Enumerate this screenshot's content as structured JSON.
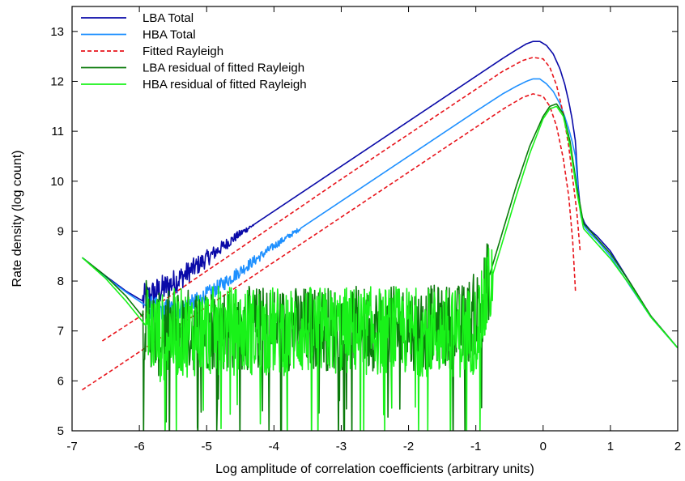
{
  "chart_data": {
    "type": "line",
    "title": "",
    "xlabel": "Log amplitude of correlation coefficients (arbitrary units)",
    "ylabel": "Rate density (log count)",
    "xlim": [
      -7,
      2
    ],
    "ylim": [
      5,
      13.5
    ],
    "xticks": [
      -7,
      -6,
      -5,
      -4,
      -3,
      -2,
      -1,
      0,
      1,
      2
    ],
    "yticks": [
      5,
      6,
      7,
      8,
      9,
      10,
      11,
      12,
      13
    ],
    "grid": false,
    "legend_position": "top-left",
    "series": [
      {
        "name": "LBA Total",
        "color": "#0a0aa8",
        "dash": "solid",
        "x": [
          -6.85,
          -6.5,
          -6.2,
          -5.95,
          -5.9,
          -5.8,
          -5.6,
          -5.4,
          -5.2,
          -5.0,
          -4.8,
          -4.5,
          -4.0,
          -3.5,
          -3.0,
          -2.5,
          -2.0,
          -1.5,
          -1.0,
          -0.6,
          -0.4,
          -0.25,
          -0.15,
          -0.05,
          0.05,
          0.15,
          0.25,
          0.32,
          0.38,
          0.43,
          0.48,
          0.52,
          0.56,
          0.62,
          0.7,
          0.8,
          1.0,
          1.3,
          1.6,
          2.0
        ],
        "y": [
          8.47,
          8.1,
          7.8,
          7.6,
          7.62,
          7.72,
          7.88,
          8.05,
          8.25,
          8.45,
          8.65,
          8.95,
          9.4,
          9.85,
          10.3,
          10.75,
          11.2,
          11.65,
          12.1,
          12.46,
          12.63,
          12.75,
          12.8,
          12.8,
          12.72,
          12.55,
          12.25,
          11.95,
          11.6,
          11.25,
          10.8,
          9.9,
          9.35,
          9.15,
          9.02,
          8.9,
          8.6,
          7.95,
          7.3,
          6.66
        ],
        "noise_x_range": [
          -5.95,
          -4.3
        ],
        "noise_amp": [
          0.35,
          0.04
        ]
      },
      {
        "name": "HBA Total",
        "color": "#1e90ff",
        "dash": "solid",
        "x": [
          -6.85,
          -6.5,
          -6.2,
          -5.95,
          -5.9,
          -5.8,
          -5.6,
          -5.4,
          -5.2,
          -5.0,
          -4.8,
          -4.5,
          -4.0,
          -3.5,
          -3.0,
          -2.5,
          -2.0,
          -1.5,
          -1.0,
          -0.6,
          -0.4,
          -0.25,
          -0.15,
          -0.05,
          0.05,
          0.15,
          0.25,
          0.32,
          0.38,
          0.43,
          0.48,
          0.52,
          0.56,
          0.62,
          0.7,
          0.8,
          1.0,
          1.3,
          1.6,
          2.0
        ],
        "y": [
          8.47,
          8.08,
          7.78,
          7.55,
          7.5,
          7.45,
          7.42,
          7.44,
          7.55,
          7.72,
          7.9,
          8.2,
          8.7,
          9.15,
          9.6,
          10.05,
          10.5,
          10.95,
          11.4,
          11.75,
          11.9,
          12.0,
          12.05,
          12.05,
          11.95,
          11.8,
          11.55,
          11.3,
          11.05,
          10.8,
          10.5,
          9.8,
          9.3,
          9.08,
          8.95,
          8.82,
          8.5,
          7.88,
          7.28,
          6.66
        ],
        "noise_x_range": [
          -5.9,
          -3.6
        ],
        "noise_amp": [
          0.25,
          0.04
        ]
      },
      {
        "name": "Fitted Rayleigh",
        "color": "#e8141b",
        "dash": "dashed",
        "x": [
          -6.55,
          -6.0,
          -5.5,
          -5.0,
          -4.5,
          -4.0,
          -3.5,
          -3.0,
          -2.5,
          -2.0,
          -1.5,
          -1.0,
          -0.6,
          -0.3,
          -0.15,
          0.0,
          0.1,
          0.2,
          0.3,
          0.38,
          0.44,
          0.5,
          0.55
        ],
        "y": [
          6.8,
          7.28,
          7.74,
          8.2,
          8.66,
          9.12,
          9.58,
          10.04,
          10.49,
          10.94,
          11.39,
          11.84,
          12.2,
          12.42,
          12.48,
          12.45,
          12.28,
          11.92,
          11.35,
          10.7,
          10.05,
          9.4,
          8.6
        ]
      },
      {
        "name": "",
        "color": "#e8141b",
        "dash": "dashed",
        "x": [
          -6.85,
          -6.5,
          -6.0,
          -5.5,
          -5.0,
          -4.5,
          -4.0,
          -3.5,
          -3.0,
          -2.5,
          -2.0,
          -1.5,
          -1.0,
          -0.6,
          -0.3,
          -0.15,
          0.0,
          0.1,
          0.2,
          0.3,
          0.38,
          0.44,
          0.48
        ],
        "y": [
          5.82,
          6.13,
          6.58,
          7.03,
          7.48,
          7.93,
          8.38,
          8.83,
          9.28,
          9.73,
          10.18,
          10.63,
          11.08,
          11.44,
          11.68,
          11.75,
          11.7,
          11.5,
          11.1,
          10.45,
          9.7,
          8.8,
          7.8
        ]
      },
      {
        "name": "LBA residual of fitted Rayleigh",
        "color": "#0b7a0b",
        "dash": "solid",
        "x": [
          -6.85,
          -6.5,
          -6.2,
          -5.9,
          -5.7,
          -5.5,
          -5.0,
          -4.0,
          -3.0,
          -2.0,
          -1.2,
          -1.0,
          -0.9,
          -0.8,
          -0.6,
          -0.4,
          -0.2,
          0.0,
          0.1,
          0.2,
          0.3,
          0.4,
          0.5,
          0.6,
          0.8,
          1.0,
          1.3,
          1.6,
          2.0
        ],
        "y": [
          8.47,
          8.1,
          7.7,
          7.2,
          6.9,
          7.0,
          7.05,
          7.05,
          7.05,
          7.05,
          7.1,
          7.35,
          7.6,
          8.1,
          9.0,
          9.9,
          10.7,
          11.3,
          11.5,
          11.55,
          11.35,
          10.8,
          9.9,
          9.15,
          8.85,
          8.55,
          7.95,
          7.3,
          6.66
        ],
        "noise_x_range": [
          -5.95,
          -0.8
        ],
        "noise_amp": [
          0.85,
          0.85
        ]
      },
      {
        "name": "HBA residual of fitted Rayleigh",
        "color": "#19f219",
        "dash": "solid",
        "x": [
          -6.85,
          -6.5,
          -6.2,
          -5.9,
          -5.7,
          -5.5,
          -5.0,
          -4.0,
          -3.0,
          -2.0,
          -1.2,
          -1.0,
          -0.9,
          -0.8,
          -0.6,
          -0.4,
          -0.2,
          0.0,
          0.1,
          0.2,
          0.3,
          0.4,
          0.5,
          0.6,
          0.8,
          1.0,
          1.3,
          1.6,
          2.0
        ],
        "y": [
          8.47,
          8.05,
          7.6,
          7.1,
          6.85,
          6.95,
          7.0,
          7.0,
          7.0,
          7.0,
          6.95,
          7.05,
          7.35,
          7.9,
          8.8,
          9.7,
          10.55,
          11.25,
          11.45,
          11.5,
          11.3,
          10.7,
          9.8,
          9.05,
          8.75,
          8.45,
          7.9,
          7.28,
          6.66
        ],
        "noise_x_range": [
          -5.9,
          -0.75
        ],
        "noise_amp": [
          0.9,
          0.9
        ]
      }
    ]
  }
}
